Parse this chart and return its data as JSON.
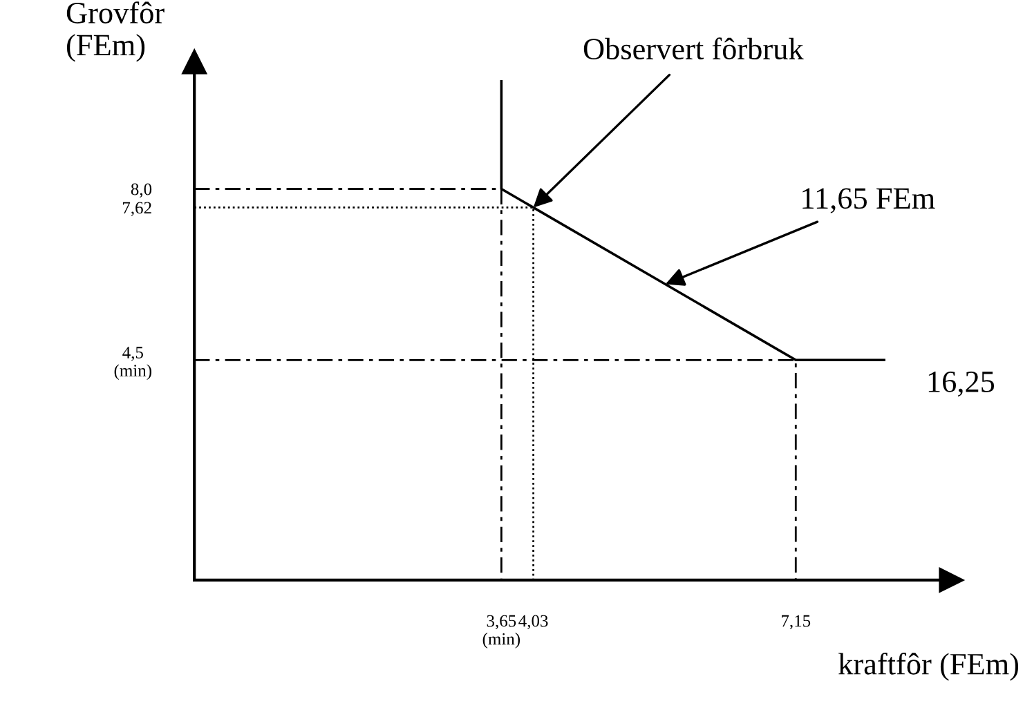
{
  "chart_data": {
    "type": "line",
    "xlabel": "kraftfôr (FEm)",
    "ylabel": "Grovfôr\n(FEm)",
    "xlim": [
      0,
      9.0
    ],
    "ylim": [
      0,
      10.6
    ],
    "xticks": [
      {
        "value": 3.65,
        "label": "3,65\n(min)"
      },
      {
        "value": 4.03,
        "label": "4,03"
      },
      {
        "value": 7.15,
        "label": "7,15"
      }
    ],
    "yticks": [
      {
        "value": 4.5,
        "label": "4,5\n(min)"
      },
      {
        "value": 7.62,
        "label": "7,62"
      },
      {
        "value": 8.0,
        "label": "8,0"
      }
    ],
    "grid": false,
    "legend": false,
    "marker": "none",
    "series": [
      {
        "color": "#000000",
        "line_style": "solid",
        "x": [
          3.65,
          3.65,
          7.15,
          8.2
        ],
        "values": [
          10.2,
          8.0,
          4.5,
          4.5
        ]
      },
      {
        "color": "#000000",
        "line_style": "dashed",
        "x": [
          0,
          3.65,
          3.65
        ],
        "values": [
          8.0,
          8.0,
          0
        ]
      },
      {
        "color": "#000000",
        "line_style": "dashed",
        "x": [
          0,
          7.15,
          7.15
        ],
        "values": [
          4.5,
          4.5,
          0
        ]
      },
      {
        "color": "#000000",
        "line_style": "dotted",
        "x": [
          0,
          4.03,
          4.03
        ],
        "values": [
          7.62,
          7.62,
          0
        ]
      }
    ],
    "annotations": [
      {
        "text": "Observert fôrbruk",
        "x": 4.03,
        "y": 7.62
      },
      {
        "text": "11,65 FEm",
        "x": 5.6,
        "y": 6.05
      },
      "16,25"
    ]
  }
}
